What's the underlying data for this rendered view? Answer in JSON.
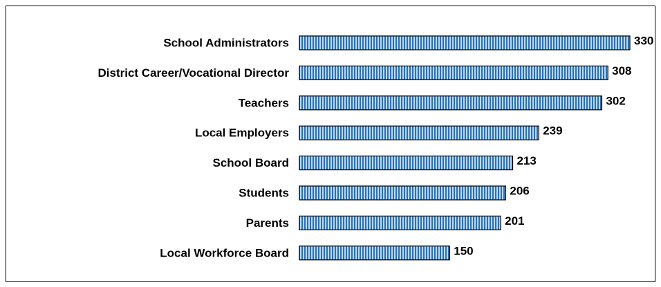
{
  "chart_data": {
    "type": "bar",
    "orientation": "horizontal",
    "categories": [
      "School Administrators",
      "District Career/Vocational Director",
      "Teachers",
      "Local Employers",
      "School Board",
      "Students",
      "Parents",
      "Local Workforce Board"
    ],
    "values": [
      330,
      308,
      302,
      239,
      213,
      206,
      201,
      150
    ],
    "color": "#2f6fb0"
  }
}
